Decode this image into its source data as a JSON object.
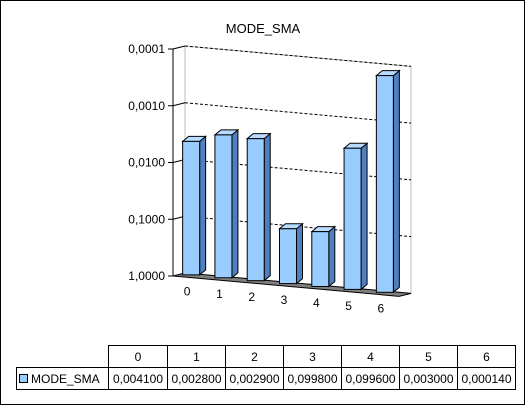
{
  "chart_data": {
    "type": "bar",
    "title": "MODE_SMA",
    "categories": [
      "0",
      "1",
      "2",
      "3",
      "4",
      "5",
      "6"
    ],
    "series": [
      {
        "name": "MODE_SMA",
        "values": [
          0.0041,
          0.0028,
          0.0029,
          0.0998,
          0.0996,
          0.003,
          0.00014
        ],
        "value_labels": [
          "0,004100",
          "0,002800",
          "0,002900",
          "0,099800",
          "0,099600",
          "0,003000",
          "0,000140"
        ]
      }
    ],
    "y_scale": "log",
    "y_reversed": true,
    "ylim": [
      1,
      0.0001
    ],
    "y_ticks": [
      1,
      0.1,
      0.01,
      0.001,
      0.0001
    ],
    "y_tick_labels": [
      "1,0000",
      "0,1000",
      "0,0100",
      "0,0010",
      "0,0001"
    ],
    "xlabel": "",
    "ylabel": "",
    "grid": true,
    "style": "3d-column",
    "data_table": true,
    "bar_color": "#99ccff",
    "floor_color": "#808080"
  }
}
